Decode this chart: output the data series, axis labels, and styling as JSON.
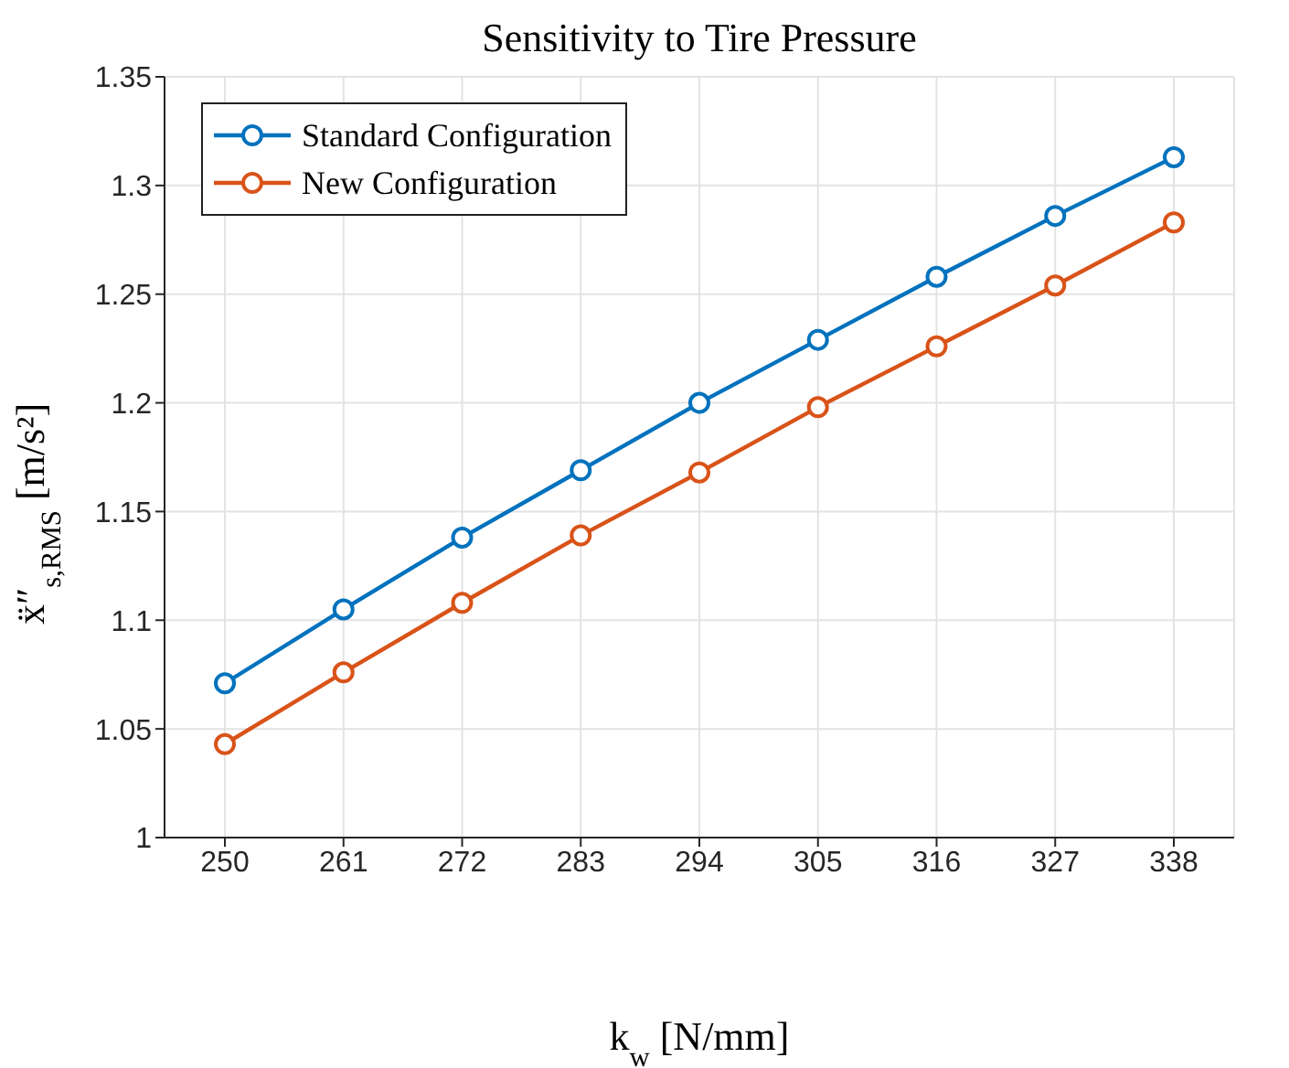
{
  "chart_data": {
    "type": "line",
    "title": "Sensitivity to Tire Pressure",
    "xlabel": "k$_{w}$ [N/mm]",
    "ylabel": "ẍ″$_{s,RMS}$ [m/s²]",
    "categories": [
      "250",
      "261",
      "272",
      "283",
      "294",
      "305",
      "316",
      "327",
      "338"
    ],
    "series": [
      {
        "name": "Standard Configuration",
        "color": "#0072bd",
        "values": [
          1.071,
          1.105,
          1.138,
          1.169,
          1.2,
          1.229,
          1.258,
          1.286,
          1.313
        ]
      },
      {
        "name": "New Configuration",
        "color": "#d95319",
        "values": [
          1.043,
          1.076,
          1.108,
          1.139,
          1.168,
          1.198,
          1.226,
          1.254,
          1.283
        ]
      }
    ],
    "ylim": [
      1,
      1.35
    ],
    "yticks": [
      1,
      1.05,
      1.1,
      1.15,
      1.2,
      1.25,
      1.3,
      1.35
    ],
    "grid": true,
    "legend": "top left",
    "marker": "circle",
    "line_style": "solid"
  }
}
